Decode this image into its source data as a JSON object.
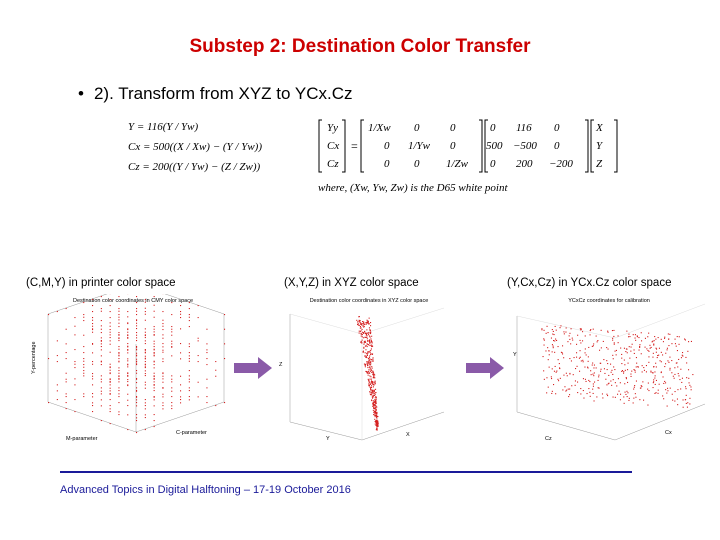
{
  "slide": {
    "title": "Substep 2: Destination Color Transfer",
    "bullet_marker": "•",
    "bullet": "2). Transform from XYZ to YCx.Cz",
    "footer": "Advanced Topics in Digital Halftoning – 17-19 October 2016"
  },
  "equations": {
    "lines": [
      "Y = 116(Y / Yw)",
      "Cx = 500((X / Xw) − (Y / Yw))",
      "Cz = 200((Y / Yw) − (Z / Zw))"
    ],
    "lhs": [
      "Yy",
      "Cx",
      "Cz"
    ],
    "m1": [
      [
        "1/Xw",
        "0",
        "0"
      ],
      [
        "0",
        "1/Yw",
        "0"
      ],
      [
        "0",
        "0",
        "1/Zw"
      ]
    ],
    "m2": [
      [
        "0",
        "116",
        "0"
      ],
      [
        "500",
        "−500",
        "0"
      ],
      [
        "0",
        "200",
        "−200"
      ]
    ],
    "rhs": [
      "X",
      "Y",
      "Z"
    ],
    "where": "where, (Xw, Yw, Zw) is the D65 white point"
  },
  "panels": [
    {
      "label": "(C,M,Y) in printer color space",
      "plot_title": "Destination color coordinates in CMY color space",
      "x_axis": "M-parameter",
      "y_axis": "C-parameter",
      "z_axis": "Y-percentage"
    },
    {
      "label": "(X,Y,Z) in XYZ color space",
      "plot_title": "Destination color coordinates in XYZ color space",
      "x_axis": "Y",
      "y_axis": "X",
      "z_axis": "Z"
    },
    {
      "label": "(Y,Cx,Cz) in YCx.Cz color space",
      "plot_title": "YCxCz coordinates for calibration",
      "x_axis": "Cz",
      "y_axis": "Cx",
      "z_axis": "Y"
    }
  ],
  "colors": {
    "title": "#cc0000",
    "arrow": "#8a5aa8",
    "footer": "#1a1a99",
    "points": "#d42020"
  }
}
